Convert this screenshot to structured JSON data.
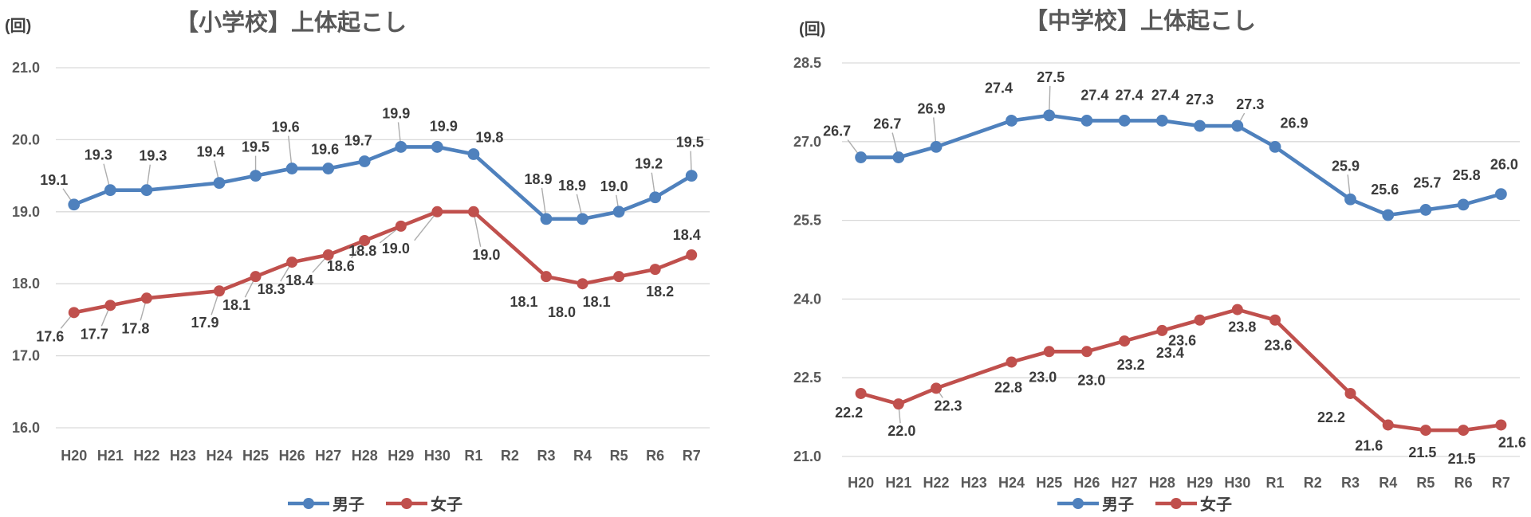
{
  "chart_data": [
    {
      "type": "line",
      "title": "【小学校】上体起こし",
      "unit": "(回)",
      "categories": [
        "H20",
        "H21",
        "H22",
        "H23",
        "H24",
        "H25",
        "H26",
        "H27",
        "H28",
        "H29",
        "H30",
        "R1",
        "R2",
        "R3",
        "R4",
        "R5",
        "R6",
        "R7"
      ],
      "ylim": [
        16.0,
        21.0
      ],
      "ytick_step": 1.0,
      "yticks": [
        "21.0",
        "20.0",
        "19.0",
        "18.0",
        "17.0",
        "16.0"
      ],
      "grid": true,
      "legend_position": "bottom",
      "series": [
        {
          "name": "男子",
          "color": "#4F81BD",
          "values": [
            19.1,
            19.3,
            19.3,
            null,
            19.4,
            19.5,
            19.6,
            19.6,
            19.7,
            19.9,
            19.9,
            19.8,
            null,
            18.9,
            18.9,
            19.0,
            19.2,
            19.5
          ]
        },
        {
          "name": "女子",
          "color": "#C0504D",
          "values": [
            17.6,
            17.7,
            17.8,
            null,
            17.9,
            18.1,
            18.3,
            18.4,
            18.6,
            18.8,
            19.0,
            19.0,
            null,
            18.1,
            18.0,
            18.1,
            18.2,
            18.4
          ]
        }
      ]
    },
    {
      "type": "line",
      "title": "【中学校】上体起こし",
      "unit": "(回)",
      "categories": [
        "H20",
        "H21",
        "H22",
        "H23",
        "H24",
        "H25",
        "H26",
        "H27",
        "H28",
        "H29",
        "H30",
        "R1",
        "R2",
        "R3",
        "R4",
        "R5",
        "R6",
        "R7"
      ],
      "ylim": [
        21.0,
        28.5
      ],
      "ytick_step": 1.5,
      "yticks": [
        "28.5",
        "27.0",
        "25.5",
        "24.0",
        "22.5",
        "21.0"
      ],
      "grid": true,
      "legend_position": "bottom",
      "series": [
        {
          "name": "男子",
          "color": "#4F81BD",
          "values": [
            26.7,
            26.7,
            26.9,
            null,
            27.4,
            27.5,
            27.4,
            27.4,
            27.4,
            27.3,
            27.3,
            26.9,
            null,
            25.9,
            25.6,
            25.7,
            25.8,
            26.0
          ]
        },
        {
          "name": "女子",
          "color": "#C0504D",
          "values": [
            22.2,
            22.0,
            22.3,
            null,
            22.8,
            23.0,
            23.0,
            23.2,
            23.4,
            23.6,
            23.8,
            23.6,
            null,
            22.2,
            21.6,
            21.5,
            21.5,
            21.6
          ]
        }
      ]
    }
  ]
}
